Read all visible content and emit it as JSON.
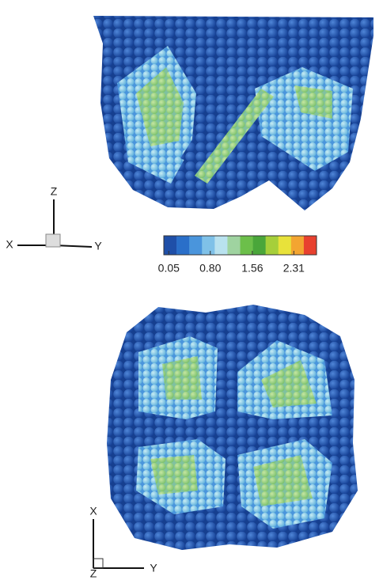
{
  "top_view": {
    "axis_z": "Z",
    "axis_x": "X",
    "axis_y": "Y"
  },
  "colorbar": {
    "range": [
      -0.04,
      2.72
    ],
    "colors": [
      "#1f4fa8",
      "#2a6fc9",
      "#4a95dc",
      "#7fc1e8",
      "#b9e2ef",
      "#9fd3a0",
      "#6cbf4a",
      "#4aa63a",
      "#a6cf3a",
      "#e8e23a",
      "#f3a531",
      "#e8412f"
    ],
    "ticks": [
      {
        "value": 0.05,
        "label": "0.05"
      },
      {
        "value": 0.8,
        "label": "0.80"
      },
      {
        "value": 1.56,
        "label": "1.56"
      },
      {
        "value": 2.31,
        "label": "2.31"
      }
    ]
  },
  "bottom_view": {
    "axis_x": "X",
    "axis_z": "Z",
    "axis_y": "Y"
  }
}
